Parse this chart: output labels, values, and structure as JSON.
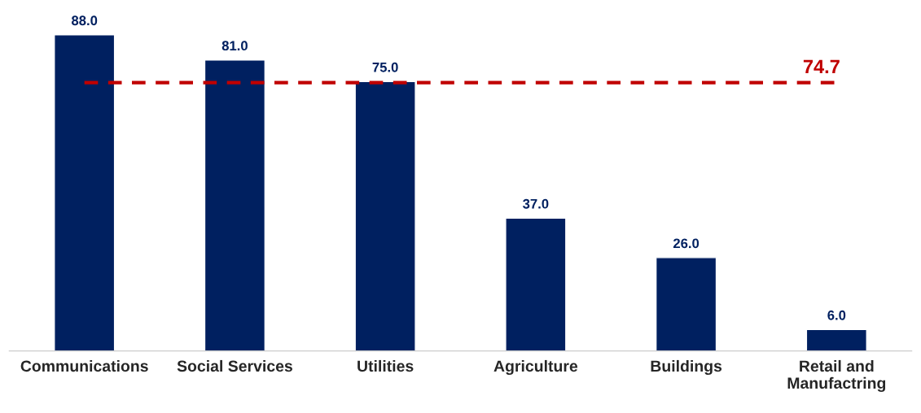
{
  "chart_data": {
    "type": "bar",
    "categories": [
      "Communications",
      "Social Services",
      "Utilities",
      "Agriculture",
      "Buildings",
      "Retail and\nManufactring"
    ],
    "values": [
      88.0,
      81.0,
      75.0,
      37.0,
      26.0,
      6.0
    ],
    "value_labels": [
      "88.0",
      "81.0",
      "75.0",
      "37.0",
      "26.0",
      "6.0"
    ],
    "color": "#002060",
    "grid": false,
    "legend": false,
    "tick_labels": "x",
    "ref_lines": [
      {
        "axis": "y",
        "value": 74.7,
        "label": "74.7",
        "color": "#c00000",
        "line_style": "dashed"
      }
    ]
  }
}
